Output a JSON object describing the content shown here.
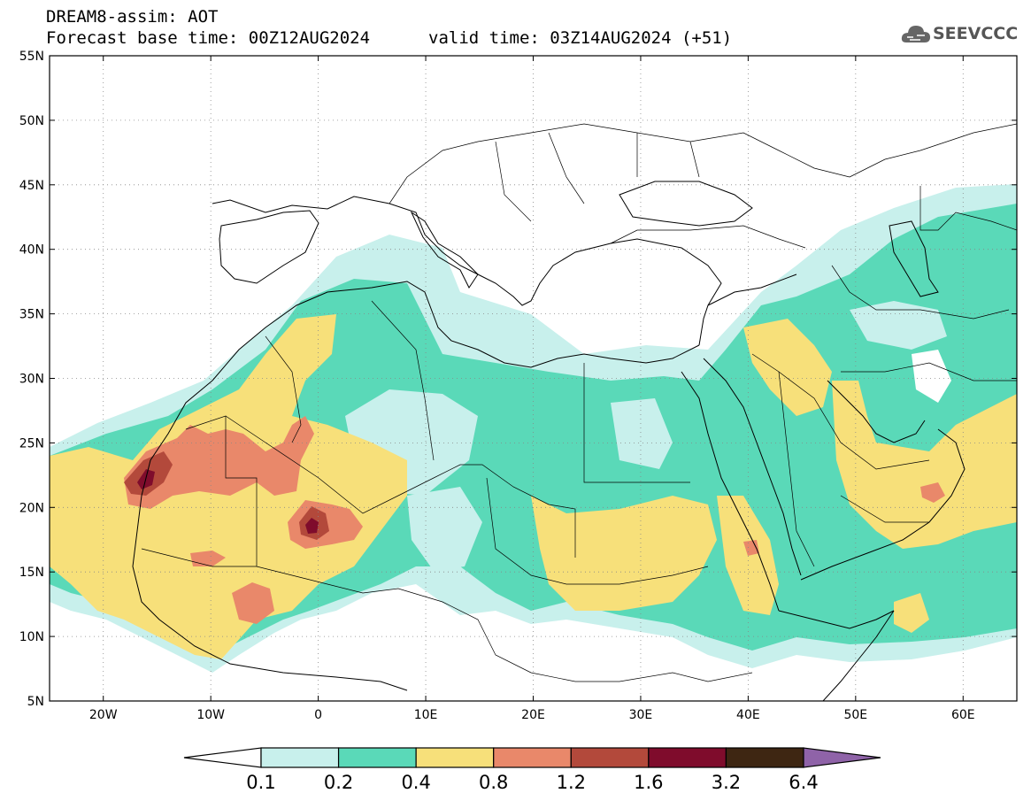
{
  "header": {
    "title_line1": "DREAM8-assim: AOT",
    "base_time": "Forecast base time: 00Z12AUG2024",
    "valid_time": "valid time: 03Z14AUG2024 (+51)",
    "logo_text": "SEEVCCC",
    "logo_icon": "cloud-icon"
  },
  "map": {
    "lon_range": [
      -25,
      65
    ],
    "lat_range": [
      5,
      55
    ],
    "lon_ticks": [
      {
        "v": -20,
        "label": "20W"
      },
      {
        "v": -10,
        "label": "10W"
      },
      {
        "v": 0,
        "label": "0"
      },
      {
        "v": 10,
        "label": "10E"
      },
      {
        "v": 20,
        "label": "20E"
      },
      {
        "v": 30,
        "label": "30E"
      },
      {
        "v": 40,
        "label": "40E"
      },
      {
        "v": 50,
        "label": "50E"
      },
      {
        "v": 60,
        "label": "60E"
      }
    ],
    "lat_ticks": [
      {
        "v": 5,
        "label": "5N"
      },
      {
        "v": 10,
        "label": "10N"
      },
      {
        "v": 15,
        "label": "15N"
      },
      {
        "v": 20,
        "label": "20N"
      },
      {
        "v": 25,
        "label": "25N"
      },
      {
        "v": 30,
        "label": "30N"
      },
      {
        "v": 35,
        "label": "35N"
      },
      {
        "v": 40,
        "label": "40N"
      },
      {
        "v": 45,
        "label": "45N"
      },
      {
        "v": 50,
        "label": "50N"
      },
      {
        "v": 55,
        "label": "55N"
      }
    ],
    "colors": {
      "c1": "#c8f0ec",
      "c2": "#5ad9b8",
      "c3": "#f7e07a",
      "c4": "#e9886a",
      "c5": "#b3493b",
      "c6": "#7f0c2c",
      "c7": "#3e2612",
      "c8": "#8f63a8",
      "border": "#000000",
      "grid": "#888888"
    }
  },
  "colorbar": {
    "labels": [
      "0.1",
      "0.2",
      "0.4",
      "0.8",
      "1.2",
      "1.6",
      "3.2",
      "6.4"
    ],
    "colors": [
      "#c8f0ec",
      "#5ad9b8",
      "#f7e07a",
      "#e9886a",
      "#b3493b",
      "#7f0c2c",
      "#3e2612"
    ],
    "low_color": "#ffffff",
    "high_color": "#8f63a8"
  }
}
